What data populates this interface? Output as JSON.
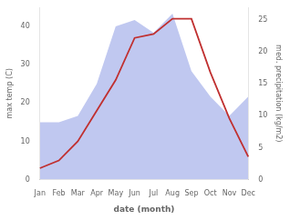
{
  "chart_data": {
    "type": "line",
    "xlabel": "date (month)",
    "ylabel": "max temp (C)",
    "y2label": "med. precipitation (kg/m2)",
    "categories": [
      "Jan",
      "Feb",
      "Mar",
      "Apr",
      "May",
      "Jun",
      "Jul",
      "Aug",
      "Sep",
      "Oct",
      "Nov",
      "Dec"
    ],
    "series": [
      {
        "type": "area",
        "axis": "y2",
        "color": "#c0c8f0",
        "values": [
          9,
          9,
          10,
          15,
          24,
          25,
          23,
          26,
          17,
          13,
          10,
          13
        ]
      },
      {
        "type": "line",
        "axis": "y",
        "color": "#c03030",
        "values": [
          3,
          5,
          10,
          18,
          26,
          37,
          38,
          42,
          42,
          28,
          16,
          6
        ]
      }
    ],
    "ylim": [
      0,
      45
    ],
    "yticks": [
      0,
      10,
      20,
      30,
      40
    ],
    "y2lim": [
      0,
      27
    ],
    "y2ticks": [
      0,
      5,
      10,
      15,
      20,
      25
    ],
    "grid": false
  }
}
